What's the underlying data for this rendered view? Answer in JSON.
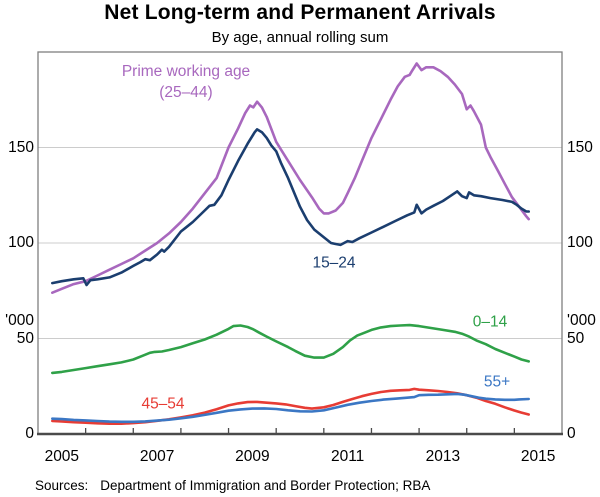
{
  "chart": {
    "title": "Net Long-term and Permanent Arrivals",
    "subtitle": "By age, annual rolling sum",
    "source_label": "Sources:",
    "source_text": "Department of Immigration and Border Protection; RBA"
  },
  "chart_data": {
    "type": "line",
    "title": "Net Long-term and Permanent Arrivals",
    "subtitle": "By age, annual rolling sum",
    "unit_label": "'000",
    "x_axis": {
      "min": 2005,
      "max": 2016,
      "tick_years": [
        2006,
        2007,
        2008,
        2009,
        2010,
        2011,
        2012,
        2013,
        2014,
        2015
      ],
      "label_years": [
        "2005",
        "2007",
        "2009",
        "2011",
        "2013",
        "2015"
      ]
    },
    "y_axis": {
      "min": 0,
      "max": 200,
      "gridlines": [
        50,
        100,
        150
      ],
      "tick_values": [
        0,
        50,
        100,
        150
      ],
      "tick_labels": [
        "0",
        "50",
        "100",
        "150"
      ],
      "unit": "'000",
      "grid_on": true
    },
    "legend_position": "direct-labels-on-chart",
    "colors": {
      "grid": "#cccccc",
      "frame": "#808080",
      "axis": "#4a4a4a"
    },
    "series": [
      {
        "name": "Prime working age (25–44)",
        "label_lines": [
          "Prime working age",
          "(25–44)"
        ],
        "color": "#a868be",
        "points": [
          [
            2005.3,
            74
          ],
          [
            2005.5,
            76
          ],
          [
            2005.75,
            78.5
          ],
          [
            2006,
            80
          ],
          [
            2006.25,
            83
          ],
          [
            2006.5,
            86
          ],
          [
            2006.75,
            89
          ],
          [
            2007,
            92
          ],
          [
            2007.25,
            96
          ],
          [
            2007.5,
            100
          ],
          [
            2007.75,
            105
          ],
          [
            2008,
            111
          ],
          [
            2008.25,
            118
          ],
          [
            2008.5,
            126
          ],
          [
            2008.75,
            134
          ],
          [
            2009,
            150
          ],
          [
            2009.2,
            160
          ],
          [
            2009.35,
            168
          ],
          [
            2009.45,
            172
          ],
          [
            2009.52,
            171
          ],
          [
            2009.6,
            174
          ],
          [
            2009.7,
            171
          ],
          [
            2009.8,
            166
          ],
          [
            2010,
            153
          ],
          [
            2010.1,
            149
          ],
          [
            2010.25,
            143
          ],
          [
            2010.5,
            133
          ],
          [
            2010.75,
            124
          ],
          [
            2010.9,
            118
          ],
          [
            2011,
            115.5
          ],
          [
            2011.1,
            115.5
          ],
          [
            2011.25,
            117
          ],
          [
            2011.4,
            121
          ],
          [
            2011.5,
            126
          ],
          [
            2011.65,
            134
          ],
          [
            2011.8,
            143
          ],
          [
            2012,
            155
          ],
          [
            2012.2,
            165
          ],
          [
            2012.4,
            175
          ],
          [
            2012.55,
            182
          ],
          [
            2012.7,
            187
          ],
          [
            2012.8,
            188
          ],
          [
            2012.85,
            190
          ],
          [
            2012.95,
            194
          ],
          [
            2013.05,
            190.5
          ],
          [
            2013.15,
            192
          ],
          [
            2013.3,
            192
          ],
          [
            2013.45,
            190
          ],
          [
            2013.6,
            187
          ],
          [
            2013.75,
            183
          ],
          [
            2013.9,
            178
          ],
          [
            2014,
            170
          ],
          [
            2014.08,
            172
          ],
          [
            2014.15,
            169
          ],
          [
            2014.3,
            162
          ],
          [
            2014.4,
            150
          ],
          [
            2014.5,
            145
          ],
          [
            2014.65,
            138
          ],
          [
            2014.8,
            131
          ],
          [
            2014.95,
            124
          ],
          [
            2015.1,
            119
          ],
          [
            2015.25,
            114
          ],
          [
            2015.3,
            112.5
          ]
        ]
      },
      {
        "name": "15–24",
        "label_lines": [
          "15–24"
        ],
        "color": "#1b3e6f",
        "points": [
          [
            2005.3,
            79
          ],
          [
            2005.5,
            80
          ],
          [
            2005.75,
            81
          ],
          [
            2005.95,
            81.5
          ],
          [
            2006.02,
            78
          ],
          [
            2006.1,
            80.5
          ],
          [
            2006.25,
            81
          ],
          [
            2006.5,
            82
          ],
          [
            2006.75,
            84.5
          ],
          [
            2007,
            88
          ],
          [
            2007.15,
            90
          ],
          [
            2007.25,
            91.5
          ],
          [
            2007.35,
            91
          ],
          [
            2007.5,
            94
          ],
          [
            2007.6,
            96.5
          ],
          [
            2007.65,
            95.5
          ],
          [
            2007.75,
            98
          ],
          [
            2008,
            106
          ],
          [
            2008.1,
            108
          ],
          [
            2008.25,
            111
          ],
          [
            2008.5,
            117
          ],
          [
            2008.6,
            119.5
          ],
          [
            2008.7,
            120
          ],
          [
            2008.85,
            125
          ],
          [
            2009,
            133
          ],
          [
            2009.2,
            143
          ],
          [
            2009.4,
            152
          ],
          [
            2009.55,
            158
          ],
          [
            2009.6,
            159.5
          ],
          [
            2009.7,
            158
          ],
          [
            2009.8,
            155
          ],
          [
            2009.9,
            151
          ],
          [
            2010,
            148
          ],
          [
            2010.1,
            142
          ],
          [
            2010.25,
            134
          ],
          [
            2010.4,
            125
          ],
          [
            2010.5,
            119
          ],
          [
            2010.65,
            112
          ],
          [
            2010.8,
            107
          ],
          [
            2011,
            103
          ],
          [
            2011.15,
            100
          ],
          [
            2011.25,
            99.5
          ],
          [
            2011.35,
            99
          ],
          [
            2011.5,
            101
          ],
          [
            2011.6,
            100.5
          ],
          [
            2011.75,
            102.5
          ],
          [
            2012,
            105.5
          ],
          [
            2012.25,
            108.5
          ],
          [
            2012.5,
            111.5
          ],
          [
            2012.75,
            114.5
          ],
          [
            2012.9,
            116
          ],
          [
            2012.95,
            120
          ],
          [
            2013.05,
            115.5
          ],
          [
            2013.15,
            117.5
          ],
          [
            2013.3,
            119.5
          ],
          [
            2013.5,
            122
          ],
          [
            2013.65,
            124.5
          ],
          [
            2013.8,
            127
          ],
          [
            2013.9,
            124.5
          ],
          [
            2014,
            123.5
          ],
          [
            2014.05,
            126.5
          ],
          [
            2014.15,
            125
          ],
          [
            2014.3,
            124.5
          ],
          [
            2014.5,
            123.5
          ],
          [
            2014.75,
            122.5
          ],
          [
            2014.95,
            121.5
          ],
          [
            2015.05,
            120
          ],
          [
            2015.15,
            118
          ],
          [
            2015.25,
            116.5
          ],
          [
            2015.3,
            116.5
          ]
        ]
      },
      {
        "name": "0–14",
        "label_lines": [
          "0–14"
        ],
        "color": "#2fa148",
        "points": [
          [
            2005.3,
            32
          ],
          [
            2005.5,
            32.5
          ],
          [
            2005.75,
            33.5
          ],
          [
            2006,
            34.5
          ],
          [
            2006.25,
            35.5
          ],
          [
            2006.5,
            36.5
          ],
          [
            2006.75,
            37.5
          ],
          [
            2007,
            39
          ],
          [
            2007.2,
            41
          ],
          [
            2007.35,
            42.5
          ],
          [
            2007.45,
            43
          ],
          [
            2007.6,
            43.2
          ],
          [
            2007.75,
            44
          ],
          [
            2008,
            45.5
          ],
          [
            2008.25,
            47.5
          ],
          [
            2008.5,
            49.5
          ],
          [
            2008.75,
            52
          ],
          [
            2009,
            55
          ],
          [
            2009.1,
            56.5
          ],
          [
            2009.25,
            56.8
          ],
          [
            2009.4,
            56
          ],
          [
            2009.5,
            55
          ],
          [
            2009.65,
            53
          ],
          [
            2009.8,
            51
          ],
          [
            2010,
            48.5
          ],
          [
            2010.25,
            45.5
          ],
          [
            2010.4,
            43.5
          ],
          [
            2010.6,
            41
          ],
          [
            2010.8,
            40
          ],
          [
            2011,
            40
          ],
          [
            2011.2,
            42
          ],
          [
            2011.4,
            45.5
          ],
          [
            2011.55,
            49
          ],
          [
            2011.7,
            51.5
          ],
          [
            2011.85,
            53
          ],
          [
            2012,
            54.5
          ],
          [
            2012.2,
            55.8
          ],
          [
            2012.4,
            56.5
          ],
          [
            2012.6,
            56.8
          ],
          [
            2012.8,
            57
          ],
          [
            2013,
            56.5
          ],
          [
            2013.25,
            55.5
          ],
          [
            2013.5,
            54.5
          ],
          [
            2013.75,
            53.5
          ],
          [
            2013.9,
            52.5
          ],
          [
            2014.05,
            51
          ],
          [
            2014.2,
            49
          ],
          [
            2014.4,
            47
          ],
          [
            2014.6,
            44.5
          ],
          [
            2014.8,
            42.5
          ],
          [
            2015,
            40.5
          ],
          [
            2015.15,
            39
          ],
          [
            2015.3,
            38
          ]
        ]
      },
      {
        "name": "45–54",
        "label_lines": [
          "45–54"
        ],
        "color": "#e73c34",
        "points": [
          [
            2005.3,
            6.8
          ],
          [
            2005.5,
            6.6
          ],
          [
            2005.75,
            6.2
          ],
          [
            2006,
            5.9
          ],
          [
            2006.25,
            5.6
          ],
          [
            2006.5,
            5.4
          ],
          [
            2006.75,
            5.4
          ],
          [
            2007,
            5.7
          ],
          [
            2007.25,
            6.2
          ],
          [
            2007.5,
            6.9
          ],
          [
            2007.75,
            7.7
          ],
          [
            2008,
            8.7
          ],
          [
            2008.25,
            9.8
          ],
          [
            2008.5,
            11.2
          ],
          [
            2008.75,
            13
          ],
          [
            2009,
            15
          ],
          [
            2009.2,
            16
          ],
          [
            2009.4,
            16.7
          ],
          [
            2009.6,
            16.8
          ],
          [
            2009.8,
            16.4
          ],
          [
            2010,
            16
          ],
          [
            2010.2,
            15.5
          ],
          [
            2010.4,
            14.6
          ],
          [
            2010.6,
            13.7
          ],
          [
            2010.75,
            13.3
          ],
          [
            2011,
            14
          ],
          [
            2011.2,
            15.2
          ],
          [
            2011.4,
            16.8
          ],
          [
            2011.6,
            18.3
          ],
          [
            2011.8,
            19.8
          ],
          [
            2012,
            21
          ],
          [
            2012.2,
            22
          ],
          [
            2012.4,
            22.6
          ],
          [
            2012.6,
            22.9
          ],
          [
            2012.8,
            23.1
          ],
          [
            2012.9,
            23.6
          ],
          [
            2013,
            23.2
          ],
          [
            2013.2,
            22.9
          ],
          [
            2013.4,
            22.5
          ],
          [
            2013.6,
            22
          ],
          [
            2013.8,
            21.3
          ],
          [
            2014,
            20.3
          ],
          [
            2014.2,
            19
          ],
          [
            2014.4,
            17.3
          ],
          [
            2014.6,
            15.8
          ],
          [
            2014.8,
            14
          ],
          [
            2015,
            12.3
          ],
          [
            2015.15,
            11.2
          ],
          [
            2015.3,
            10.2
          ]
        ]
      },
      {
        "name": "55+",
        "label_lines": [
          "55+"
        ],
        "color": "#3b77c4",
        "points": [
          [
            2005.3,
            8
          ],
          [
            2005.5,
            7.8
          ],
          [
            2005.75,
            7.4
          ],
          [
            2006,
            7.1
          ],
          [
            2006.25,
            6.8
          ],
          [
            2006.5,
            6.5
          ],
          [
            2006.75,
            6.4
          ],
          [
            2007,
            6.4
          ],
          [
            2007.25,
            6.6
          ],
          [
            2007.5,
            7
          ],
          [
            2007.75,
            7.5
          ],
          [
            2008,
            8.2
          ],
          [
            2008.25,
            9
          ],
          [
            2008.5,
            10
          ],
          [
            2008.75,
            11.1
          ],
          [
            2009,
            12.2
          ],
          [
            2009.25,
            12.9
          ],
          [
            2009.5,
            13.3
          ],
          [
            2009.75,
            13.4
          ],
          [
            2010,
            13.1
          ],
          [
            2010.25,
            12.4
          ],
          [
            2010.5,
            11.9
          ],
          [
            2010.75,
            11.8
          ],
          [
            2011,
            12.4
          ],
          [
            2011.25,
            13.8
          ],
          [
            2011.5,
            15.3
          ],
          [
            2011.75,
            16.4
          ],
          [
            2012,
            17.3
          ],
          [
            2012.25,
            18
          ],
          [
            2012.5,
            18.5
          ],
          [
            2012.75,
            19
          ],
          [
            2012.9,
            19.3
          ],
          [
            2013,
            20.3
          ],
          [
            2013.2,
            20.5
          ],
          [
            2013.4,
            20.6
          ],
          [
            2013.6,
            20.8
          ],
          [
            2013.8,
            21
          ],
          [
            2013.95,
            20.6
          ],
          [
            2014.1,
            19.8
          ],
          [
            2014.25,
            19
          ],
          [
            2014.4,
            18.5
          ],
          [
            2014.6,
            18.1
          ],
          [
            2014.8,
            17.9
          ],
          [
            2015,
            17.9
          ],
          [
            2015.1,
            18.1
          ],
          [
            2015.3,
            18.3
          ]
        ]
      }
    ]
  }
}
